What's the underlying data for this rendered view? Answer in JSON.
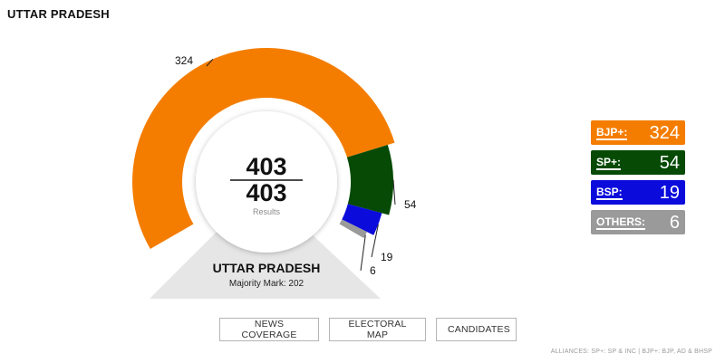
{
  "header": {
    "title": "UTTAR PRADESH"
  },
  "chart_data": {
    "type": "gauge-donut",
    "title": "",
    "total_seats": 403,
    "results_declared": 403,
    "results_label": "Results",
    "state_label": "UTTAR PRADESH",
    "majority_label": "Majority Mark: 202",
    "majority_mark": 202,
    "series": [
      {
        "name": "BJP+",
        "legend_label": "BJP+:",
        "value": 324,
        "color": "#f47d00"
      },
      {
        "name": "SP+",
        "legend_label": "SP+:",
        "value": 54,
        "color": "#064a05"
      },
      {
        "name": "BSP",
        "legend_label": "BSP:",
        "value": 19,
        "color": "#0b0bdc"
      },
      {
        "name": "OTHERS",
        "legend_label": "OTHERS:",
        "value": 6,
        "color": "#9a9a9a"
      }
    ]
  },
  "buttons": {
    "news": "NEWS COVERAGE",
    "map": "ELECTORAL MAP",
    "candidates": "CANDIDATES"
  },
  "footer": {
    "alliances": "ALLIANCES: SP+: SP & INC  |  BJP+: BJP, AD & BHSP"
  }
}
